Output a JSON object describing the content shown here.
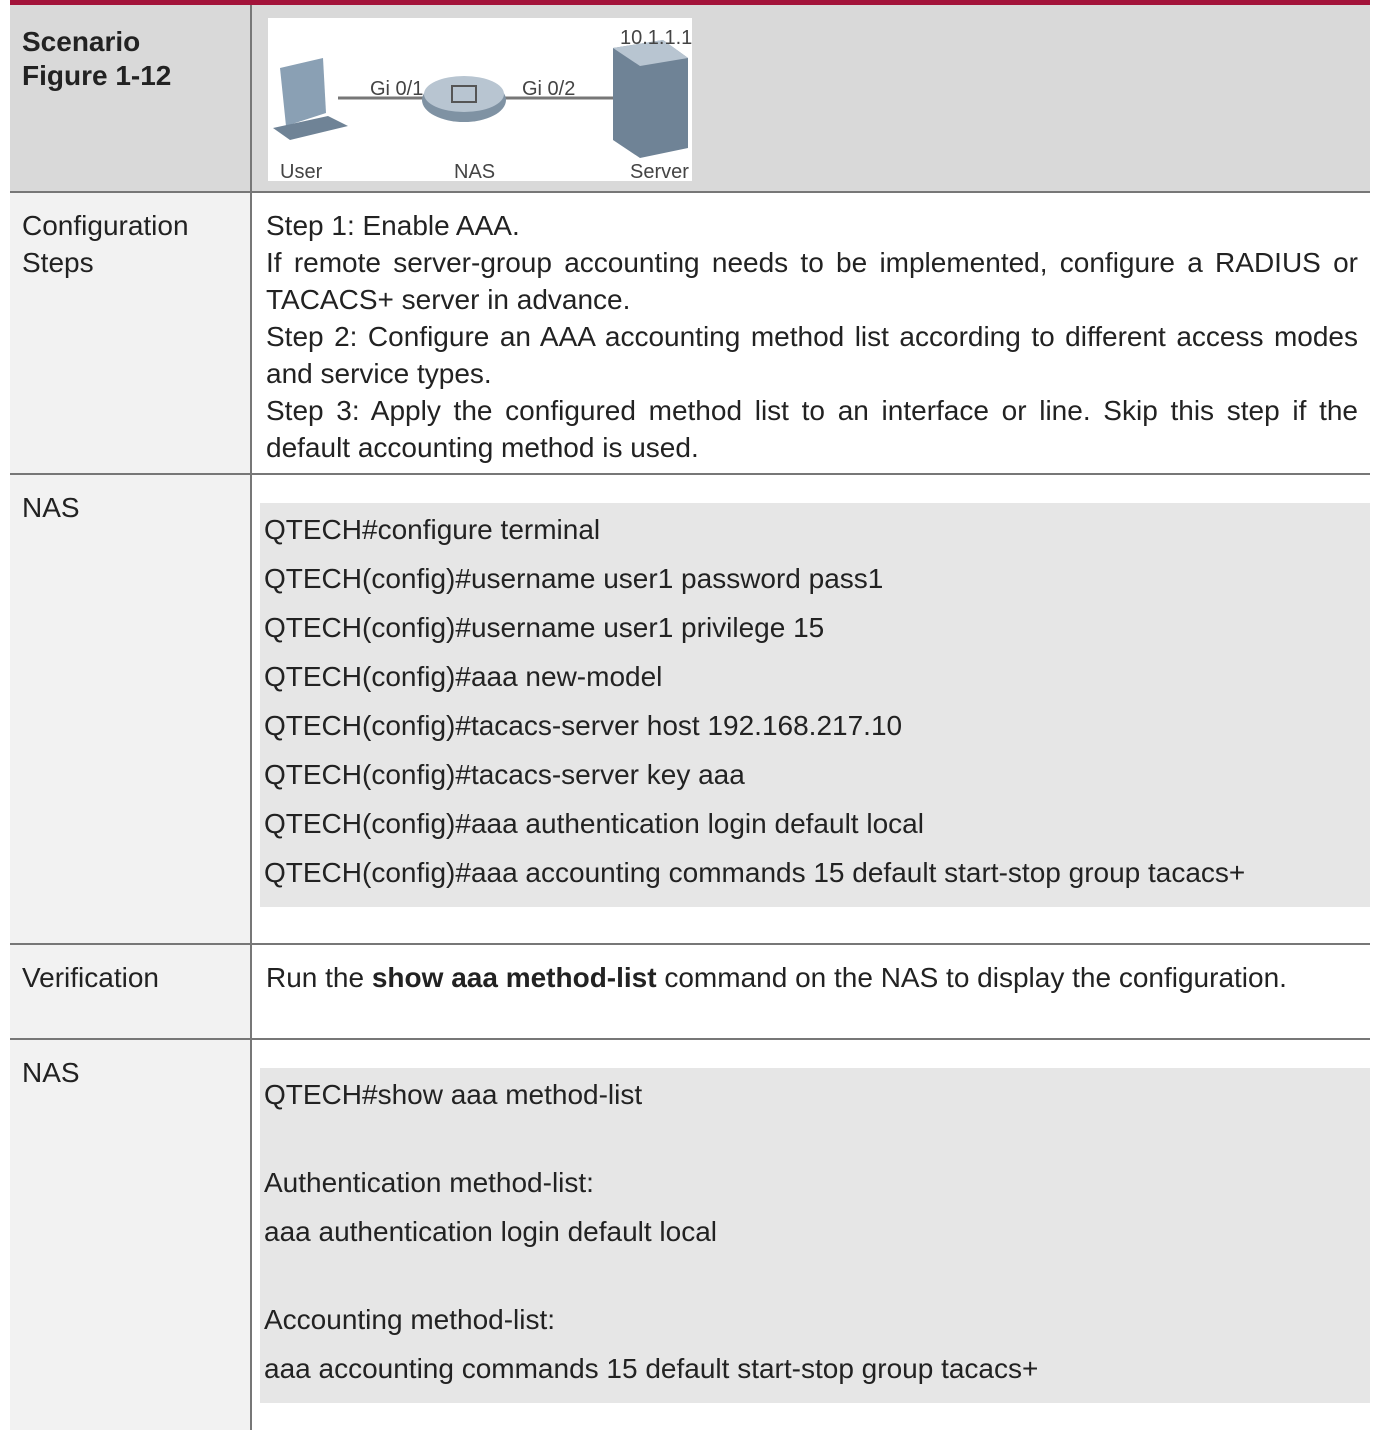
{
  "header": {
    "label": [
      "Scenario",
      "Figure 1-12"
    ],
    "figure": {
      "ip": "10.1.1.1",
      "port1": "Gi 0/1",
      "port2": "Gi 0/2",
      "user": "User",
      "nas": "NAS",
      "server": "Server"
    }
  },
  "rows": [
    {
      "label": "Configuration Steps",
      "paragraphs": [
        "Step 1: Enable AAA.",
        "If remote server-group accounting needs to be implemented, configure a RADIUS or TACACS+ server in advance.",
        "Step 2: Configure an AAA accounting method list according to different access modes and service types.",
        "Step 3: Apply the configured method list to an interface or line. Skip this step if the default accounting method is used."
      ]
    },
    {
      "label": "NAS",
      "code": [
        [
          "QTECH#configure terminal",
          "QTECH(config)#username user1 password pass1",
          "QTECH(config)#username user1 privilege 15",
          "QTECH(config)#aaa new-model",
          "QTECH(config)#tacacs-server host 192.168.217.10",
          "QTECH(config)#tacacs-server key aaa",
          "QTECH(config)#aaa authentication login default local",
          "QTECH(config)#aaa accounting commands 15 default start-stop group tacacs+"
        ]
      ]
    },
    {
      "label": "Verification",
      "text": {
        "before": "Run the",
        "bold": "show aaa method-list",
        "after": "command on the NAS to display the configuration."
      }
    },
    {
      "label": "NAS",
      "code": [
        [
          "QTECH#show aaa method-list"
        ],
        [
          "Authentication method-list:",
          "aaa authentication login default local"
        ],
        [
          "Accounting method-list:",
          "aaa accounting commands 15 default start-stop group tacacs+"
        ]
      ]
    }
  ]
}
